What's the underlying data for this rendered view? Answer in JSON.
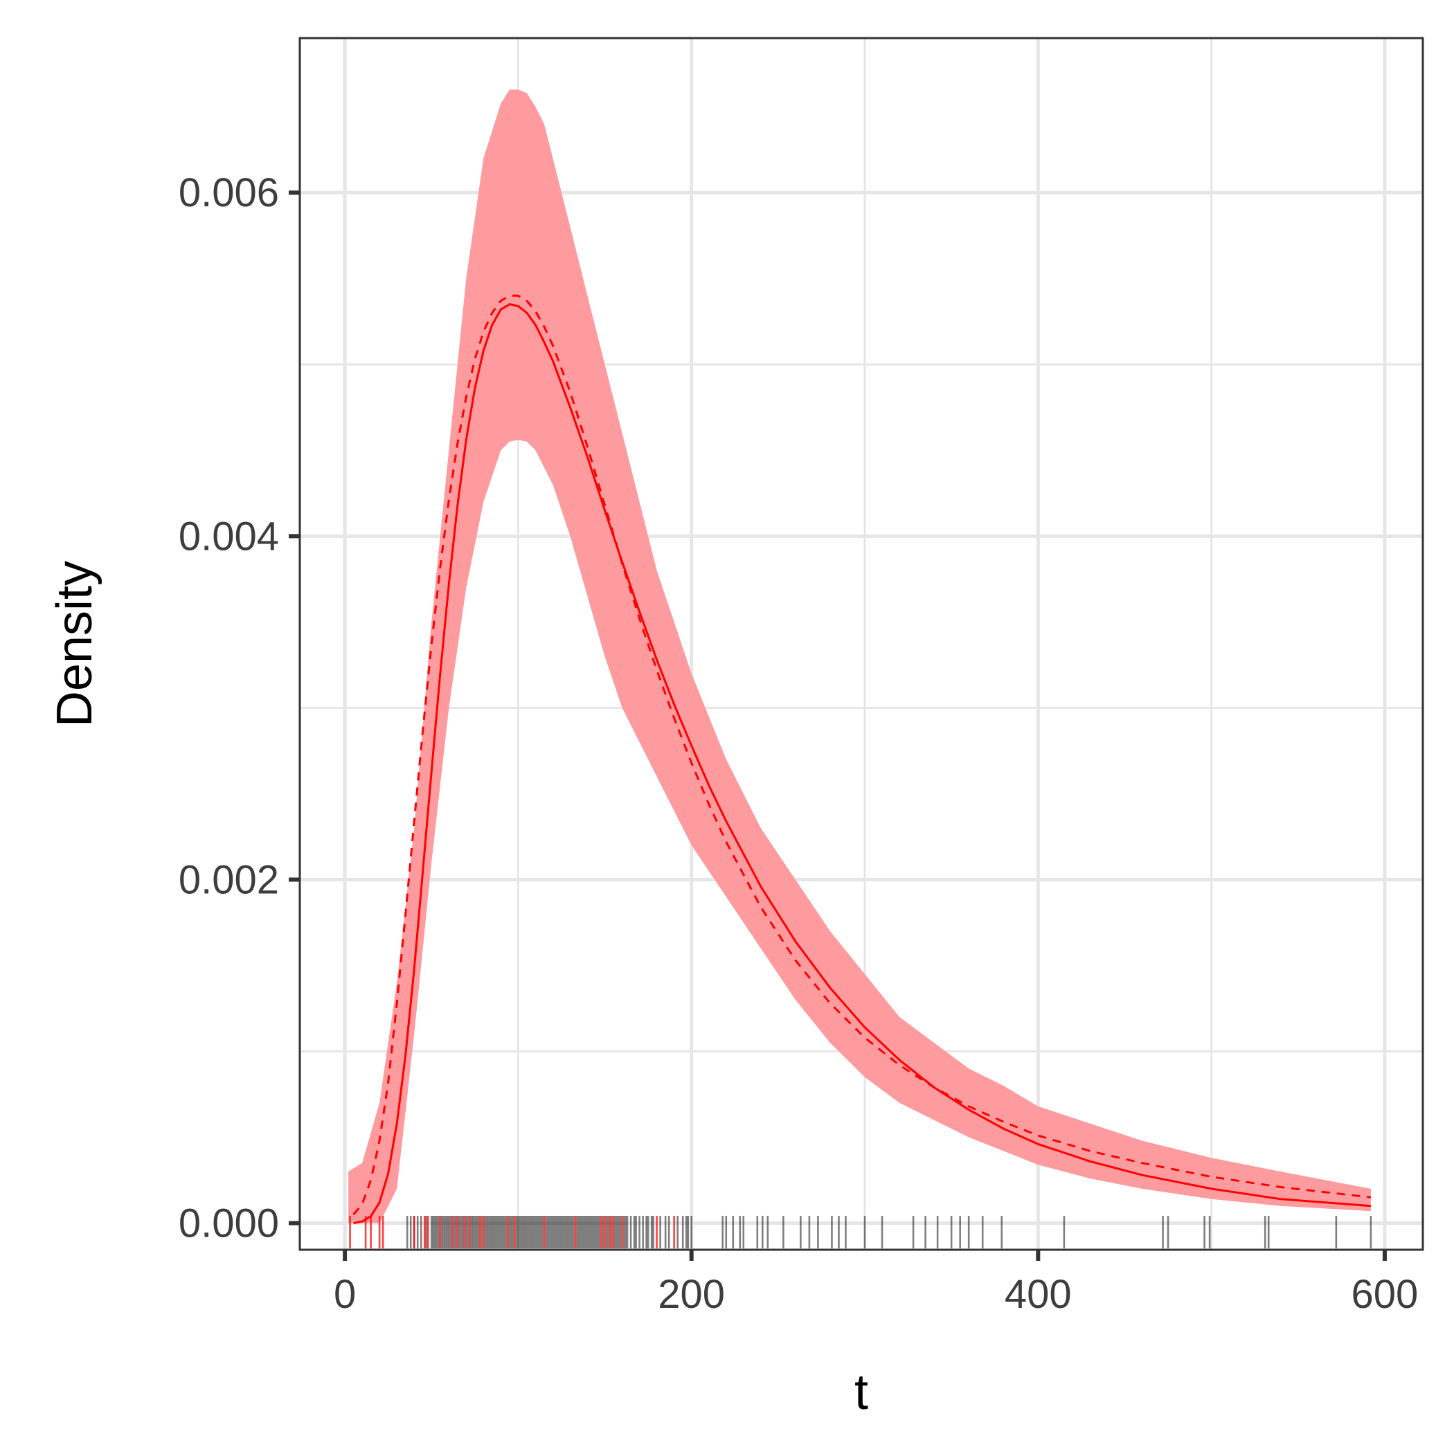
{
  "chart_data": {
    "type": "line",
    "title": "",
    "xlabel": "t",
    "ylabel": "Density",
    "xlim": [
      -26,
      622
    ],
    "ylim": [
      -0.000155,
      0.0069
    ],
    "x_ticks": [
      0,
      200,
      400,
      600
    ],
    "x_tick_labels": [
      "0",
      "200",
      "400",
      "600"
    ],
    "y_ticks": [
      0.0,
      0.002,
      0.004,
      0.006
    ],
    "y_tick_labels": [
      "0.000",
      "0.002",
      "0.004",
      "0.006"
    ],
    "x_minor_gridlines": [
      100,
      300,
      500
    ],
    "y_minor_gridlines": [
      0.001,
      0.003,
      0.005
    ],
    "grid": true,
    "colors": {
      "fit_line": "#ff0000",
      "band": "#fe9b9f",
      "rug_red": "#ff0000",
      "rug_gray": "#000000",
      "panel_border": "#333333"
    },
    "series": [
      {
        "kind": "ribbon",
        "x": [
          2,
          10,
          20,
          30,
          40,
          50,
          60,
          70,
          80,
          90,
          95,
          100,
          105,
          110,
          115,
          120,
          130,
          140,
          150,
          160,
          170,
          180,
          190,
          200,
          220,
          240,
          260,
          280,
          300,
          320,
          340,
          360,
          380,
          400,
          430,
          460,
          500,
          540,
          592
        ],
        "lower": [
          0.0,
          0.0,
          0.0,
          0.0002,
          0.0011,
          0.0021,
          0.003,
          0.0037,
          0.0042,
          0.0045,
          0.00455,
          0.00456,
          0.00455,
          0.0045,
          0.0044,
          0.0043,
          0.004,
          0.00365,
          0.0033,
          0.003,
          0.0028,
          0.0026,
          0.0024,
          0.0022,
          0.0019,
          0.0016,
          0.0013,
          0.00105,
          0.00085,
          0.0007,
          0.0006,
          0.0005,
          0.00042,
          0.00034,
          0.00026,
          0.0002,
          0.00014,
          0.0001,
          7e-05
        ],
        "upper": [
          0.0003,
          0.00035,
          0.0007,
          0.0014,
          0.0023,
          0.0035,
          0.0045,
          0.0055,
          0.0062,
          0.00652,
          0.0066,
          0.0066,
          0.00658,
          0.0065,
          0.0064,
          0.0062,
          0.0058,
          0.0054,
          0.005,
          0.0046,
          0.0042,
          0.0038,
          0.0035,
          0.0032,
          0.0027,
          0.0023,
          0.002,
          0.0017,
          0.00145,
          0.0012,
          0.00105,
          0.0009,
          0.0008,
          0.00068,
          0.00058,
          0.00048,
          0.00038,
          0.0003,
          0.0002
        ]
      },
      {
        "kind": "solid",
        "x": [
          5,
          10,
          15,
          20,
          25,
          30,
          35,
          40,
          45,
          50,
          55,
          60,
          65,
          70,
          75,
          80,
          85,
          90,
          95,
          100,
          105,
          110,
          115,
          120,
          130,
          140,
          150,
          160,
          170,
          180,
          190,
          200,
          210,
          220,
          240,
          260,
          280,
          300,
          320,
          340,
          360,
          380,
          400,
          430,
          460,
          500,
          540,
          592
        ],
        "y": [
          0.0,
          1e-05,
          4e-05,
          0.00012,
          0.00029,
          0.00058,
          0.00098,
          0.00148,
          0.00205,
          0.00263,
          0.0032,
          0.00372,
          0.00418,
          0.00456,
          0.00486,
          0.00508,
          0.00523,
          0.00532,
          0.00535,
          0.00534,
          0.0053,
          0.00523,
          0.00513,
          0.00502,
          0.00475,
          0.00446,
          0.00415,
          0.00385,
          0.00356,
          0.00328,
          0.00302,
          0.00278,
          0.00255,
          0.00234,
          0.00196,
          0.00164,
          0.00137,
          0.00114,
          0.00095,
          0.00079,
          0.00066,
          0.00055,
          0.00046,
          0.00036,
          0.00028,
          0.0002,
          0.00014,
          0.0001
        ]
      },
      {
        "kind": "dashed",
        "x": [
          5,
          10,
          15,
          20,
          25,
          30,
          35,
          40,
          45,
          50,
          55,
          60,
          65,
          70,
          75,
          80,
          85,
          90,
          95,
          100,
          105,
          110,
          115,
          120,
          130,
          140,
          150,
          160,
          170,
          180,
          190,
          200,
          210,
          220,
          240,
          260,
          280,
          300,
          320,
          340,
          360,
          380,
          400,
          430,
          460,
          500,
          540,
          592
        ],
        "y": [
          5e-05,
          0.00011,
          0.00025,
          0.00048,
          0.00082,
          0.00128,
          0.0018,
          0.00234,
          0.00287,
          0.00337,
          0.00382,
          0.00421,
          0.00454,
          0.00481,
          0.00503,
          0.00519,
          0.0053,
          0.00537,
          0.0054,
          0.0054,
          0.00537,
          0.00531,
          0.00522,
          0.00511,
          0.00484,
          0.00452,
          0.00418,
          0.00384,
          0.00352,
          0.00322,
          0.00294,
          0.00268,
          0.00244,
          0.00222,
          0.00184,
          0.00153,
          0.00128,
          0.00108,
          0.00092,
          0.00079,
          0.00068,
          0.00059,
          0.00051,
          0.00042,
          0.00035,
          0.00027,
          0.00021,
          0.00015
        ]
      }
    ],
    "rug_red": [
      3,
      12,
      15,
      20,
      22,
      40,
      46,
      48,
      55,
      62,
      65,
      69,
      72,
      78,
      80,
      94,
      98,
      115,
      133,
      148,
      150,
      153,
      155,
      160,
      180,
      190
    ],
    "rug_gray": [
      36,
      38,
      40,
      42,
      44,
      47,
      50,
      51,
      52,
      53,
      54,
      56,
      57,
      58,
      59,
      60,
      61,
      63,
      64,
      66,
      67,
      68,
      70,
      71,
      73,
      74,
      75,
      76,
      77,
      79,
      81,
      82,
      83,
      84,
      85,
      86,
      87,
      88,
      89,
      90,
      91,
      92,
      93,
      95,
      96,
      97,
      99,
      100,
      101,
      102,
      103,
      104,
      105,
      106,
      107,
      108,
      109,
      110,
      111,
      112,
      113,
      114,
      116,
      117,
      118,
      119,
      120,
      121,
      122,
      123,
      124,
      125,
      126,
      127,
      128,
      129,
      130,
      131,
      132,
      134,
      135,
      136,
      137,
      138,
      139,
      140,
      141,
      142,
      143,
      144,
      145,
      146,
      147,
      149,
      151,
      152,
      154,
      156,
      157,
      158,
      159,
      161,
      162,
      163,
      165,
      167,
      168,
      170,
      172,
      174,
      175,
      177,
      178,
      182,
      185,
      187,
      192,
      195,
      197,
      198,
      200,
      218,
      220,
      224,
      228,
      230,
      238,
      241,
      244,
      253,
      263,
      268,
      273,
      281,
      285,
      289,
      300,
      310,
      328,
      335,
      342,
      350,
      355,
      360,
      368,
      379,
      415,
      472,
      475,
      496,
      499,
      531,
      533,
      572,
      592
    ]
  }
}
